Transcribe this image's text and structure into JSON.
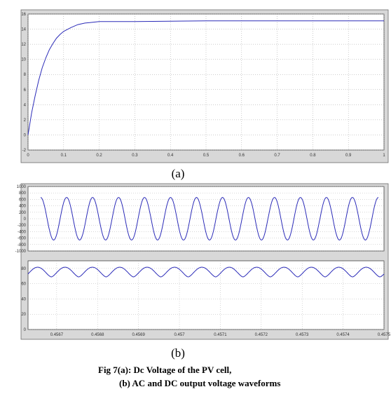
{
  "labels": {
    "a": "(a)",
    "b": "(b)"
  },
  "caption": {
    "line1": "Fig 7(a): Dc Voltage of the PV cell,",
    "line2": "(b) AC and DC output voltage waveforms"
  },
  "colors": {
    "trace": "#2b2bb8",
    "frame": "#6b6b6b",
    "panel": "#d8d8d8",
    "grid": "#9a9a9a"
  },
  "chart_data": [
    {
      "type": "line",
      "title": "",
      "xlim": [
        0,
        1
      ],
      "ylim": [
        -2,
        16
      ],
      "x_ticks": [
        "0",
        "0.1",
        "0.2",
        "0.3",
        "0.4",
        "0.5",
        "0.6",
        "0.7",
        "0.8",
        "0.9",
        "1"
      ],
      "y_ticks": [
        "-2",
        "0",
        "2",
        "4",
        "6",
        "8",
        "10",
        "12",
        "14",
        "16"
      ],
      "grid": true,
      "series": [
        {
          "x": [
            0,
            0.01,
            0.02,
            0.03,
            0.04,
            0.05,
            0.06,
            0.07,
            0.08,
            0.09,
            0.1,
            0.12,
            0.14,
            0.16,
            0.18,
            0.2,
            0.25,
            0.3,
            0.4,
            0.5,
            0.6,
            0.7,
            0.8,
            0.9,
            1.0
          ],
          "y": [
            0,
            2.9,
            5.2,
            7.2,
            8.9,
            10.2,
            11.3,
            12.1,
            12.8,
            13.3,
            13.7,
            14.2,
            14.6,
            14.8,
            14.9,
            15.0,
            15.0,
            15.0,
            15.05,
            15.1,
            15.1,
            15.1,
            15.1,
            15.1,
            15.1
          ]
        }
      ]
    },
    {
      "type": "line",
      "title": "",
      "ylim": [
        -1000,
        1000
      ],
      "y_ticks": [
        "1000",
        "800",
        "600",
        "400",
        "200",
        "0",
        "-200",
        "-400",
        "-600",
        "-800",
        "-1000"
      ],
      "grid": true,
      "series": [
        {
          "waveform": "sine",
          "amplitude": 660,
          "offset": 0,
          "cycles": 13,
          "phase_deg": 90
        }
      ]
    },
    {
      "type": "line",
      "title": "",
      "xlim": [
        0.45663,
        0.4575
      ],
      "ylim": [
        0,
        90
      ],
      "x_ticks": [
        "0.4567",
        "0.4568",
        "0.4569",
        "0.457",
        "0.4571",
        "0.4572",
        "0.4573",
        "0.4574",
        "0.4575"
      ],
      "y_ticks": [
        "80",
        "60",
        "40",
        "20",
        "0"
      ],
      "grid": true,
      "series": [
        {
          "waveform": "rectified",
          "max": 82,
          "min": 65,
          "secondary_peak": 72,
          "cycles": 13
        }
      ]
    }
  ]
}
